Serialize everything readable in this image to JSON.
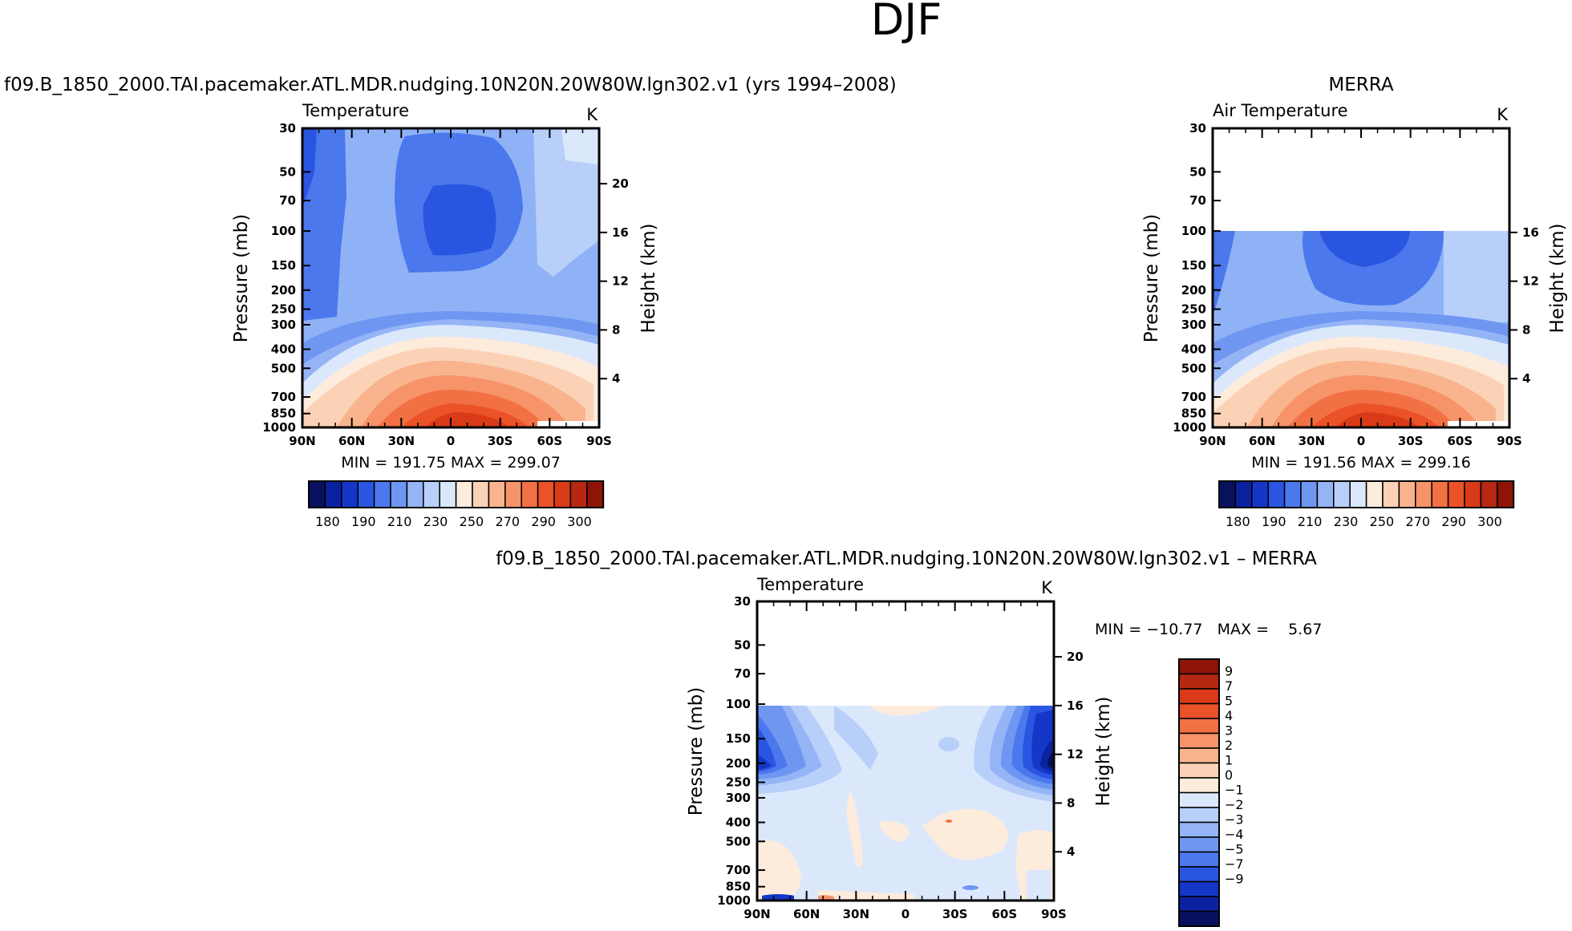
{
  "page_title": "DJF",
  "colors": {
    "blue_palette": [
      "#08115e",
      "#0b22a0",
      "#1437c8",
      "#2a55e0",
      "#4b78ec",
      "#6f97f2",
      "#94b4f6",
      "#b8cff9",
      "#dbe8fc",
      "#fdebdc",
      "#fcd2b6",
      "#f9b48e",
      "#f69368",
      "#f27144",
      "#ec5228",
      "#d93a17",
      "#b62812",
      "#8f1408"
    ],
    "land_white": "#ffffff"
  },
  "chart_data": [
    {
      "id": "model",
      "type": "contour",
      "heading": "f09.B_1850_2000.TAI.pacemaker.ATL.MDR.nudging.10N20N.20W80W.lgn302.v1 (yrs 1994–2008)",
      "field": "Temperature",
      "units": "K",
      "ylabel": "Pressure (mb)",
      "ylabel_right": "Height (km)",
      "xticks": [
        "90N",
        "60N",
        "30N",
        "0",
        "30S",
        "60S",
        "90S"
      ],
      "yticks": [
        "30",
        "50",
        "70",
        "100",
        "150",
        "200",
        "250",
        "300",
        "400",
        "500",
        "700",
        "850",
        "1000"
      ],
      "yticks_right": [
        "20",
        "16",
        "12",
        "8",
        "4"
      ],
      "min": 191.75,
      "max": 299.07,
      "stats": "MIN = 191.75   MAX = 299.07",
      "colorbar_labels": [
        "180",
        "190",
        "210",
        "230",
        "250",
        "270",
        "290",
        "300"
      ]
    },
    {
      "id": "obs",
      "type": "contour",
      "heading": "MERRA",
      "field": "Air Temperature",
      "units": "K",
      "ylabel": "Pressure (mb)",
      "ylabel_right": "Height (km)",
      "xticks": [
        "90N",
        "60N",
        "30N",
        "0",
        "30S",
        "60S",
        "90S"
      ],
      "yticks": [
        "30",
        "50",
        "70",
        "100",
        "150",
        "200",
        "250",
        "300",
        "400",
        "500",
        "700",
        "850",
        "1000"
      ],
      "yticks_right": [
        "16",
        "12",
        "8",
        "4"
      ],
      "data_top_mb": 100,
      "min": 191.56,
      "max": 299.16,
      "stats": "MIN = 191.56   MAX = 299.16",
      "colorbar_labels": [
        "180",
        "190",
        "210",
        "230",
        "250",
        "270",
        "290",
        "300"
      ]
    },
    {
      "id": "diff",
      "type": "contour",
      "heading": "f09.B_1850_2000.TAI.pacemaker.ATL.MDR.nudging.10N20N.20W80W.lgn302.v1 – MERRA",
      "field": "Temperature",
      "units": "K",
      "ylabel": "Pressure (mb)",
      "ylabel_right": "Height (km)",
      "xticks": [
        "90N",
        "60N",
        "30N",
        "0",
        "30S",
        "60S",
        "90S"
      ],
      "yticks": [
        "30",
        "50",
        "70",
        "100",
        "150",
        "200",
        "250",
        "300",
        "400",
        "500",
        "700",
        "850",
        "1000"
      ],
      "yticks_right": [
        "20",
        "16",
        "12",
        "8",
        "4"
      ],
      "data_top_mb": 100,
      "min": -10.77,
      "max": 5.67,
      "stats": "MIN = −10.77   MAX =    5.67",
      "colorbar_labels": [
        "9",
        "7",
        "5",
        "4",
        "3",
        "2",
        "1",
        "0",
        "−1",
        "−2",
        "−3",
        "−4",
        "−5",
        "−7",
        "−9"
      ]
    }
  ]
}
